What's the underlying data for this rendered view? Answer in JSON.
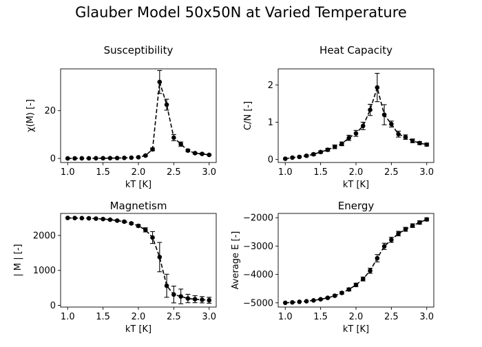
{
  "figure": {
    "title": "Glauber Model 50x50N at Varied Temperature"
  },
  "chart_data": [
    {
      "type": "line",
      "title": "Susceptibility",
      "xlabel": "kT [K]",
      "ylabel": "χ(M) [-]",
      "xlim": [
        0.9,
        3.1
      ],
      "ylim": [
        -1.7,
        37.5
      ],
      "xticks": [
        1.0,
        1.5,
        2.0,
        2.5,
        3.0
      ],
      "xtick_labels": [
        "1.0",
        "1.5",
        "2.0",
        "2.5",
        "3.0"
      ],
      "yticks": [
        0,
        20
      ],
      "ytick_labels": [
        "0",
        "20"
      ],
      "grid": false,
      "style": {
        "color": "#000000",
        "line": "dashed",
        "marker": "circle",
        "error_bars": true
      },
      "series": [
        {
          "x": [
            1.0,
            1.1,
            1.2,
            1.3,
            1.4,
            1.5,
            1.6,
            1.7,
            1.8,
            1.9,
            2.0,
            2.1,
            2.2,
            2.3,
            2.4,
            2.5,
            2.6,
            2.7,
            2.8,
            2.9,
            3.0
          ],
          "y": [
            0.02,
            0.03,
            0.04,
            0.05,
            0.07,
            0.09,
            0.12,
            0.16,
            0.22,
            0.32,
            0.5,
            1.2,
            3.8,
            32.0,
            22.5,
            8.7,
            6.0,
            3.3,
            2.2,
            1.9,
            1.5
          ],
          "yerr": [
            0,
            0,
            0,
            0,
            0,
            0,
            0,
            0,
            0,
            0,
            0.1,
            0.3,
            0.6,
            4.8,
            2.3,
            1.3,
            0.9,
            0.5,
            0.3,
            0.3,
            0.25
          ]
        }
      ]
    },
    {
      "type": "line",
      "title": "Heat Capacity",
      "xlabel": "kT [K]",
      "ylabel": "C/N [-]",
      "xlim": [
        0.9,
        3.1
      ],
      "ylim": [
        -0.08,
        2.43
      ],
      "xticks": [
        1.0,
        1.5,
        2.0,
        2.5,
        3.0
      ],
      "xtick_labels": [
        "1.0",
        "1.5",
        "2.0",
        "2.5",
        "3.0"
      ],
      "yticks": [
        0,
        1,
        2
      ],
      "ytick_labels": [
        "0",
        "1",
        "2"
      ],
      "grid": false,
      "style": {
        "color": "#000000",
        "line": "dashed",
        "marker": "circle",
        "error_bars": true
      },
      "series": [
        {
          "x": [
            1.0,
            1.1,
            1.2,
            1.3,
            1.4,
            1.5,
            1.6,
            1.7,
            1.8,
            1.9,
            2.0,
            2.1,
            2.2,
            2.3,
            2.4,
            2.5,
            2.6,
            2.7,
            2.8,
            2.9,
            3.0
          ],
          "y": [
            0.02,
            0.05,
            0.07,
            0.1,
            0.14,
            0.2,
            0.26,
            0.34,
            0.42,
            0.58,
            0.7,
            0.9,
            1.33,
            1.93,
            1.2,
            0.95,
            0.68,
            0.6,
            0.5,
            0.44,
            0.4
          ],
          "yerr": [
            0.01,
            0.01,
            0.02,
            0.02,
            0.03,
            0.03,
            0.04,
            0.05,
            0.05,
            0.07,
            0.08,
            0.1,
            0.15,
            0.38,
            0.27,
            0.08,
            0.08,
            0.06,
            0.05,
            0.04,
            0.04
          ]
        }
      ]
    },
    {
      "type": "line",
      "title": "Magnetism",
      "xlabel": "kT [K]",
      "ylabel": "| M |  [-]",
      "xlim": [
        0.9,
        3.1
      ],
      "ylim": [
        -50,
        2630
      ],
      "xticks": [
        1.0,
        1.5,
        2.0,
        2.5,
        3.0
      ],
      "xtick_labels": [
        "1.0",
        "1.5",
        "2.0",
        "2.5",
        "3.0"
      ],
      "yticks": [
        0,
        1000,
        2000
      ],
      "ytick_labels": [
        "0",
        "1000",
        "2000"
      ],
      "grid": false,
      "style": {
        "color": "#000000",
        "line": "dashed",
        "marker": "circle",
        "error_bars": true
      },
      "series": [
        {
          "x": [
            1.0,
            1.1,
            1.2,
            1.3,
            1.4,
            1.5,
            1.6,
            1.7,
            1.8,
            1.9,
            2.0,
            2.1,
            2.2,
            2.3,
            2.4,
            2.5,
            2.6,
            2.7,
            2.8,
            2.9,
            3.0
          ],
          "y": [
            2500,
            2498,
            2495,
            2490,
            2482,
            2470,
            2452,
            2425,
            2395,
            2345,
            2275,
            2160,
            1940,
            1380,
            560,
            310,
            255,
            195,
            175,
            160,
            145
          ],
          "yerr": [
            2,
            3,
            4,
            5,
            7,
            9,
            12,
            15,
            20,
            25,
            35,
            60,
            170,
            420,
            330,
            240,
            210,
            120,
            100,
            90,
            85
          ]
        }
      ]
    },
    {
      "type": "line",
      "title": "Energy",
      "xlabel": "kT [K]",
      "ylabel": "Average E [-]",
      "xlim": [
        0.9,
        3.1
      ],
      "ylim": [
        -5150,
        -1850
      ],
      "xticks": [
        1.0,
        1.5,
        2.0,
        2.5,
        3.0
      ],
      "xtick_labels": [
        "1.0",
        "1.5",
        "2.0",
        "2.5",
        "3.0"
      ],
      "yticks": [
        -5000,
        -4000,
        -3000,
        -2000
      ],
      "ytick_labels": [
        "−5000",
        "−4000",
        "−3000",
        "−2000"
      ],
      "grid": false,
      "style": {
        "color": "#000000",
        "line": "dashed",
        "marker": "circle",
        "error_bars": true
      },
      "series": [
        {
          "x": [
            1.0,
            1.1,
            1.2,
            1.3,
            1.4,
            1.5,
            1.6,
            1.7,
            1.8,
            1.9,
            2.0,
            2.1,
            2.2,
            2.3,
            2.4,
            2.5,
            2.6,
            2.7,
            2.8,
            2.9,
            3.0
          ],
          "y": [
            -5000,
            -4985,
            -4965,
            -4945,
            -4915,
            -4875,
            -4825,
            -4750,
            -4650,
            -4530,
            -4370,
            -4160,
            -3870,
            -3430,
            -3010,
            -2780,
            -2560,
            -2410,
            -2280,
            -2170,
            -2060
          ],
          "yerr": [
            5,
            8,
            10,
            12,
            15,
            20,
            25,
            30,
            40,
            50,
            60,
            70,
            90,
            130,
            110,
            90,
            80,
            70,
            65,
            60,
            55
          ]
        }
      ]
    }
  ]
}
